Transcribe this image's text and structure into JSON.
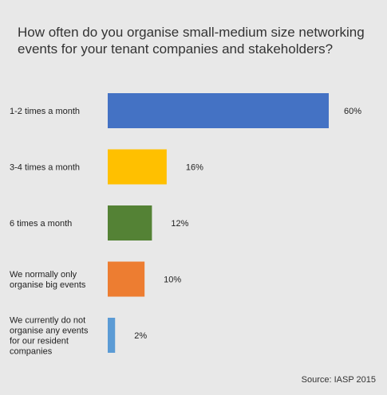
{
  "chart_data": {
    "type": "bar",
    "orientation": "horizontal",
    "title": "How often do you organise small-medium size networking events for your tenant companies and stakeholders?",
    "categories": [
      [
        "1-2 times a month"
      ],
      [
        "3-4 times a month"
      ],
      [
        "6 times a month"
      ],
      [
        "We normally only",
        "organise big events"
      ],
      [
        "We currently do not",
        "organise any events",
        "for our resident",
        "companies"
      ]
    ],
    "values": [
      60,
      16,
      12,
      10,
      2
    ],
    "value_labels": [
      "60%",
      "16%",
      "12%",
      "10%",
      "2%"
    ],
    "colors": [
      "#4472c4",
      "#ffc000",
      "#548235",
      "#ed7d31",
      "#5b9bd5"
    ],
    "xlim": [
      0,
      60
    ],
    "grid": false,
    "legend": "none"
  },
  "source": "Source: IASP 2015"
}
